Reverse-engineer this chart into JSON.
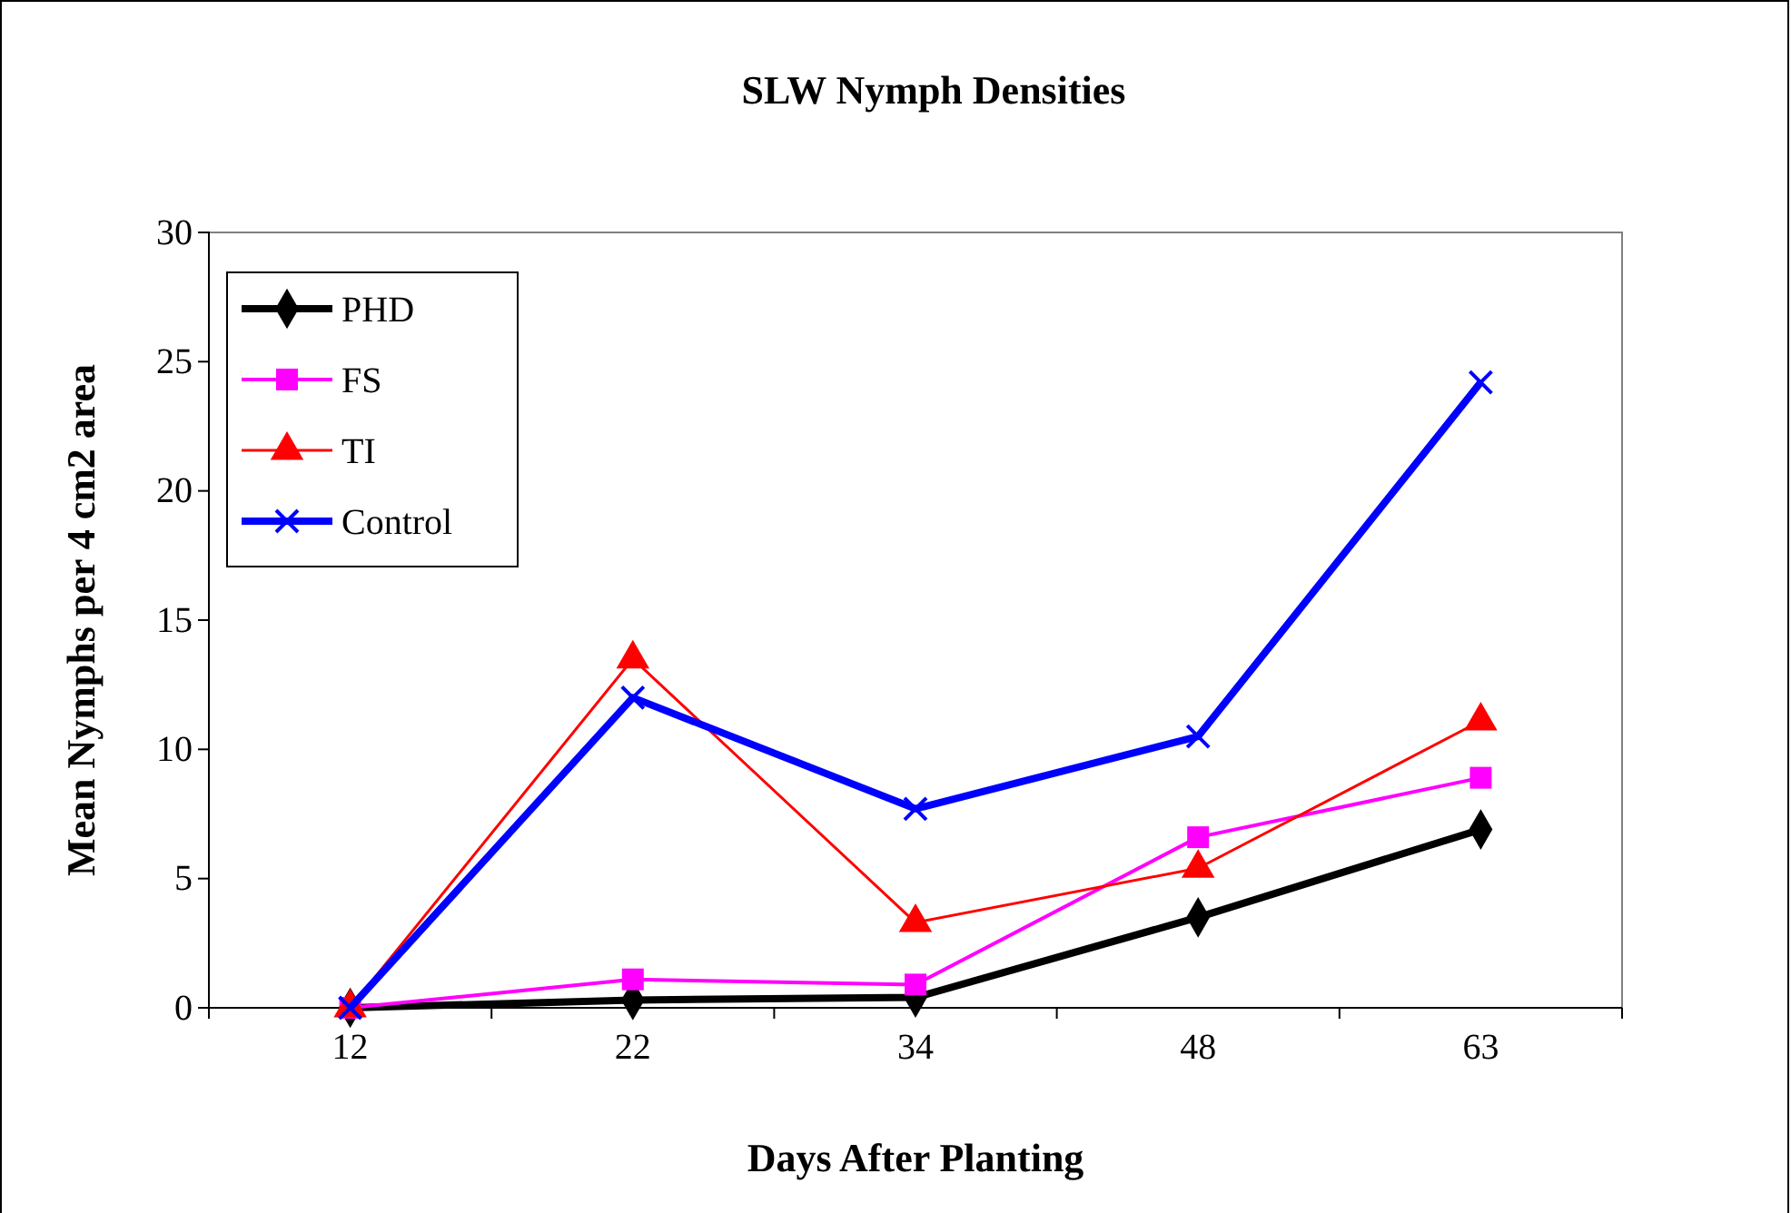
{
  "chart_data": {
    "type": "line",
    "title": "SLW Nymph Densities",
    "xlabel": "Days After Planting",
    "ylabel": "Mean Nymphs per 4 cm2 area",
    "categories": [
      "12",
      "22",
      "34",
      "48",
      "63"
    ],
    "series": [
      {
        "name": "PHD",
        "color": "#000000",
        "values": [
          0,
          0.3,
          0.4,
          3.5,
          6.9
        ],
        "marker": "diamond"
      },
      {
        "name": "FS",
        "color": "#ff00ff",
        "values": [
          0,
          1.1,
          0.9,
          6.6,
          8.9
        ],
        "marker": "square"
      },
      {
        "name": "TI",
        "color": "#ff0000",
        "values": [
          0,
          13.5,
          3.3,
          5.4,
          11.1
        ],
        "marker": "triangle"
      },
      {
        "name": "Control",
        "color": "#0000ff",
        "values": [
          0,
          12,
          7.7,
          10.5,
          24.2
        ],
        "marker": "cross"
      }
    ],
    "ylim": [
      0,
      30
    ],
    "yticks": [
      0,
      5,
      10,
      15,
      20,
      25,
      30
    ],
    "legend": "top left",
    "grid": false,
    "line_style": "solid"
  }
}
